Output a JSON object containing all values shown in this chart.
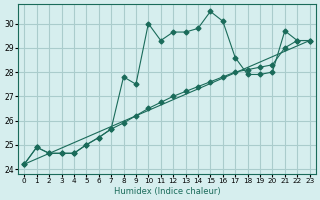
{
  "xlabel": "Humidex (Indice chaleur)",
  "ylabel": "",
  "bg_color": "#d6eeee",
  "grid_color": "#aacccc",
  "line_color": "#1a6b5a",
  "xlim": [
    -0.5,
    23.5
  ],
  "ylim": [
    23.8,
    30.8
  ],
  "xticks": [
    0,
    1,
    2,
    3,
    4,
    5,
    6,
    7,
    8,
    9,
    10,
    11,
    12,
    13,
    14,
    15,
    16,
    17,
    18,
    19,
    20,
    21,
    22,
    23
  ],
  "yticks": [
    24,
    25,
    26,
    27,
    28,
    29,
    30
  ],
  "series1_x": [
    0,
    1,
    2,
    3,
    4,
    5,
    6,
    7,
    8,
    9,
    10,
    11,
    12,
    13,
    14,
    15,
    16,
    17,
    18,
    19,
    20,
    21,
    22,
    23
  ],
  "series1_y": [
    24.2,
    24.9,
    24.65,
    24.65,
    24.65,
    25.0,
    25.3,
    25.65,
    27.8,
    27.5,
    30.0,
    29.3,
    29.65,
    29.65,
    29.8,
    30.5,
    30.1,
    28.6,
    27.9,
    27.9,
    28.0,
    29.7,
    29.3,
    29.3
  ],
  "series2_x": [
    0,
    1,
    2,
    3,
    4,
    5,
    6,
    7,
    8,
    9,
    10,
    11,
    12,
    13,
    14,
    15,
    16,
    17,
    18,
    19,
    20,
    21,
    22,
    23
  ],
  "series2_y": [
    24.2,
    24.9,
    24.65,
    24.65,
    24.65,
    25.0,
    25.3,
    25.65,
    25.9,
    26.2,
    26.5,
    26.75,
    27.0,
    27.2,
    27.4,
    27.6,
    27.8,
    28.0,
    28.1,
    28.2,
    28.3,
    29.0,
    29.3,
    29.3
  ],
  "series3_x": [
    0,
    23
  ],
  "series3_y": [
    24.2,
    29.3
  ],
  "lw": 0.8,
  "ms": 2.5
}
